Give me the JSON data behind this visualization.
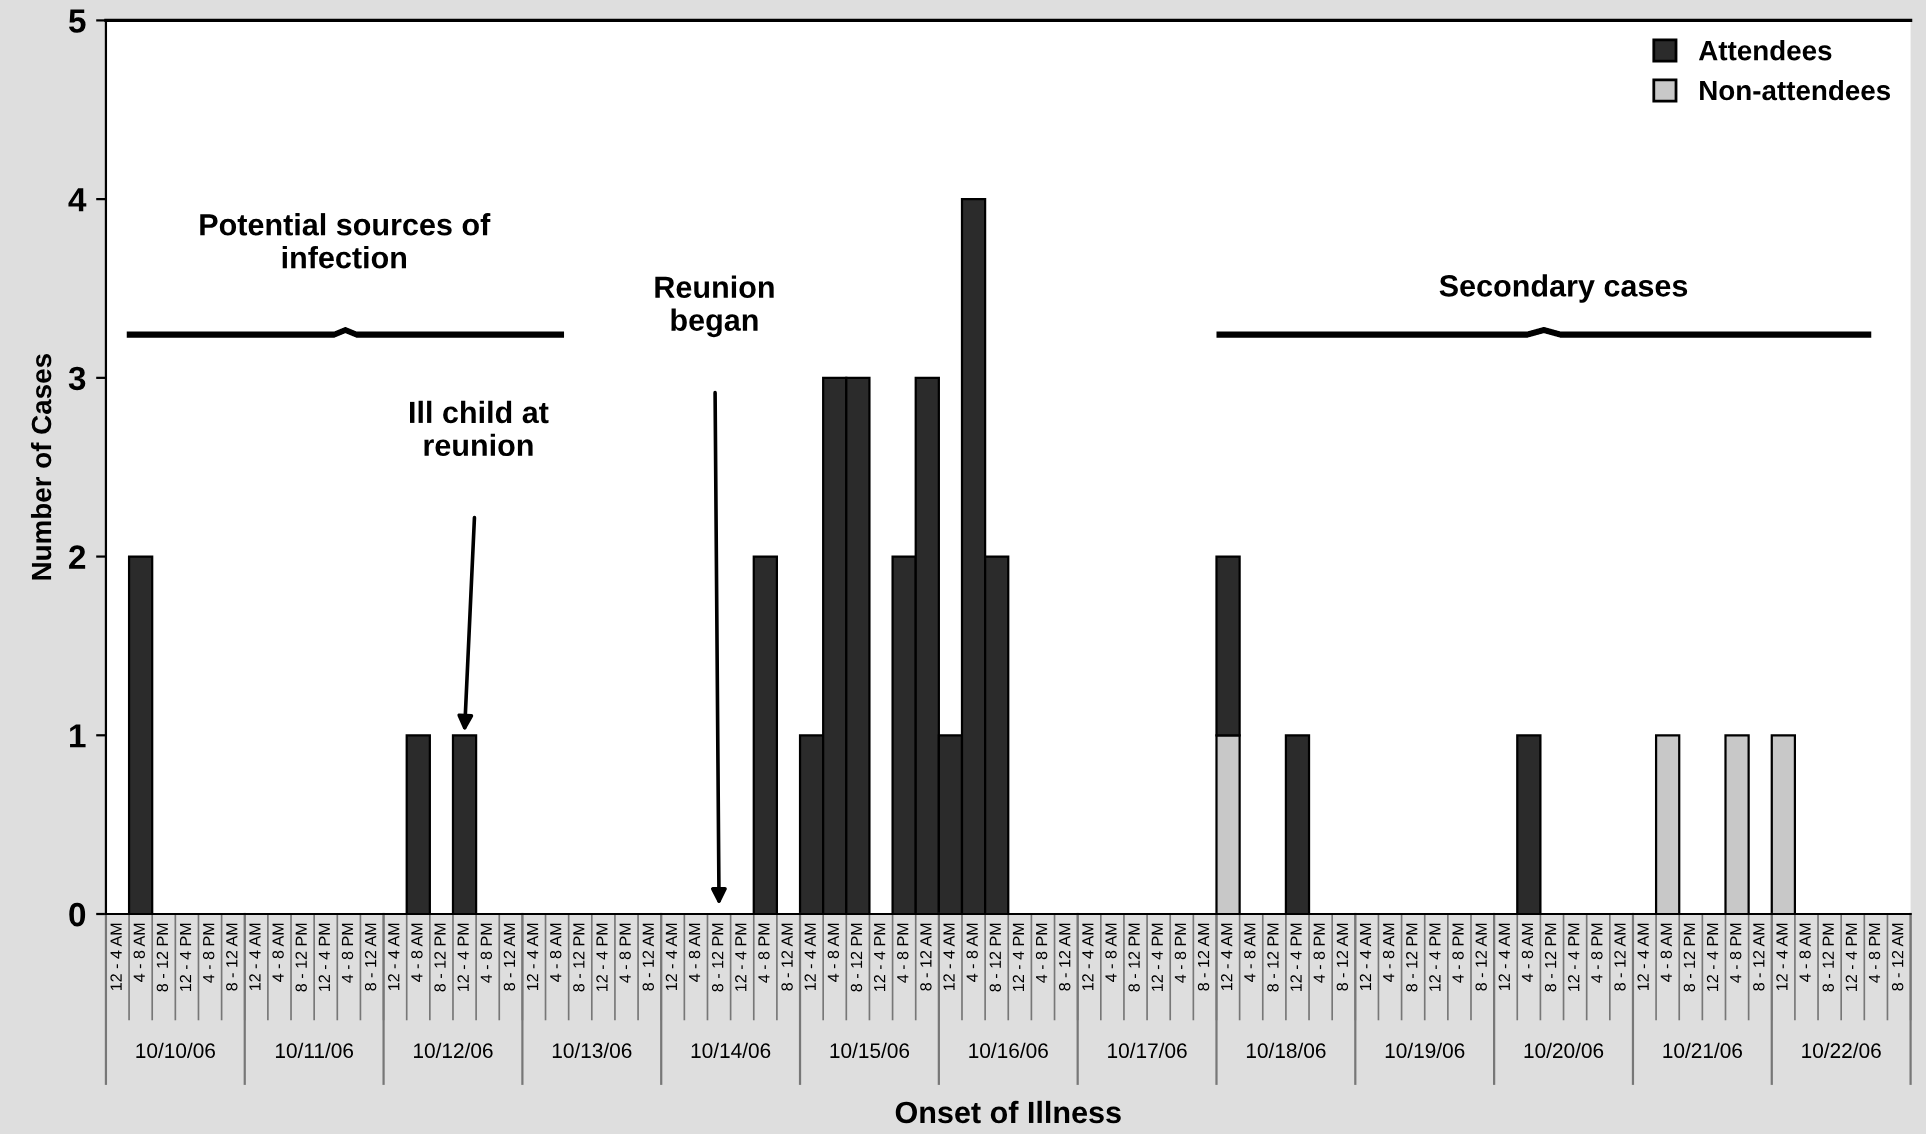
{
  "chart_data": {
    "type": "bar",
    "stacked": true,
    "xlabel": "Onset of Illness",
    "ylabel": "Number of Cases",
    "categories": [
      "12 - 4 AM",
      "4 - 8 AM",
      "8 - 12 PM",
      "12 - 4 PM",
      "4 - 8 PM",
      "8 - 12 AM",
      "12 - 4 AM",
      "4 - 8 AM",
      "8 - 12 PM",
      "12 - 4 PM",
      "4 - 8 PM",
      "8 - 12 AM",
      "12 - 4 AM",
      "4 - 8 AM",
      "8 - 12 PM",
      "12 - 4 PM",
      "4 - 8 PM",
      "8 - 12 AM",
      "12 - 4 AM",
      "4 - 8 AM",
      "8 - 12 PM",
      "12 - 4 PM",
      "4 - 8 PM",
      "8 - 12 AM",
      "12 - 4 AM",
      "4 - 8 AM",
      "8 - 12 PM",
      "12 - 4 PM",
      "4 - 8 PM",
      "8 - 12 AM",
      "12 - 4 AM",
      "4 - 8 AM",
      "8 - 12 PM",
      "12 - 4 PM",
      "4 - 8 PM",
      "8 - 12 AM",
      "12 - 4 AM",
      "4 - 8 AM",
      "8 - 12 PM",
      "12 - 4 PM",
      "4 - 8 PM",
      "8 - 12 AM",
      "12 - 4 AM",
      "4 - 8 AM",
      "8 - 12 PM",
      "12 - 4 PM",
      "4 - 8 PM",
      "8 - 12 AM",
      "12 - 4 AM",
      "4 - 8 AM",
      "8 - 12 PM",
      "12 - 4 PM",
      "4 - 8 PM",
      "8 - 12 AM",
      "12 - 4 AM",
      "4 - 8 AM",
      "8 - 12 PM",
      "12 - 4 PM",
      "4 - 8 PM",
      "8 - 12 AM",
      "12 - 4 AM",
      "4 - 8 AM",
      "8 - 12 PM",
      "12 - 4 PM",
      "4 - 8 PM",
      "8 - 12 AM",
      "12 - 4 AM",
      "4 - 8 AM",
      "8 - 12 PM",
      "12 - 4 PM",
      "4 - 8 PM",
      "8 - 12 AM",
      "12 - 4 AM",
      "4 - 8 AM",
      "8 - 12 PM",
      "12 - 4 PM",
      "4 - 8 PM",
      "8 - 12 AM"
    ],
    "series": [
      {
        "name": "Non-attendees",
        "color": "#c8c8c8",
        "values": [
          0,
          0,
          0,
          0,
          0,
          0,
          0,
          0,
          0,
          0,
          0,
          0,
          0,
          0,
          0,
          0,
          0,
          0,
          0,
          0,
          0,
          0,
          0,
          0,
          0,
          0,
          0,
          0,
          0,
          0,
          0,
          0,
          0,
          0,
          0,
          0,
          0,
          0,
          0,
          0,
          0,
          0,
          0,
          0,
          0,
          0,
          0,
          0,
          1,
          0,
          0,
          0,
          0,
          0,
          0,
          0,
          0,
          0,
          0,
          0,
          0,
          0,
          0,
          0,
          0,
          0,
          0,
          1,
          0,
          0,
          1,
          0,
          1,
          0,
          0,
          0,
          0,
          0
        ]
      },
      {
        "name": "Attendees",
        "color": "#2b2b2b",
        "values": [
          0,
          2,
          0,
          0,
          0,
          0,
          0,
          0,
          0,
          0,
          0,
          0,
          0,
          1,
          0,
          1,
          0,
          0,
          0,
          0,
          0,
          0,
          0,
          0,
          0,
          0,
          0,
          0,
          2,
          0,
          1,
          3,
          3,
          0,
          2,
          3,
          1,
          4,
          2,
          0,
          0,
          0,
          0,
          0,
          0,
          0,
          0,
          0,
          1,
          0,
          0,
          1,
          0,
          0,
          0,
          0,
          0,
          0,
          0,
          0,
          0,
          1,
          0,
          0,
          0,
          0,
          0,
          0,
          0,
          0,
          0,
          0,
          0,
          0,
          0,
          0,
          0,
          0
        ]
      }
    ],
    "ylim": [
      0,
      5
    ],
    "yticks": [
      0,
      1,
      2,
      3,
      4,
      5
    ],
    "grid": false,
    "legend": "top right",
    "annotations": [
      "Potential sources of\ninfection",
      "Ill child at\nreunion",
      "Reunion\nbegan",
      "Secondary cases",
      "10/10/06",
      "10/11/06",
      "10/12/06",
      "10/13/06",
      "10/14/06",
      "10/15/06",
      "10/16/06",
      "10/17/06",
      "10/18/06",
      "10/19/06",
      "10/20/06",
      "10/21/06",
      "10/22/06"
    ]
  }
}
